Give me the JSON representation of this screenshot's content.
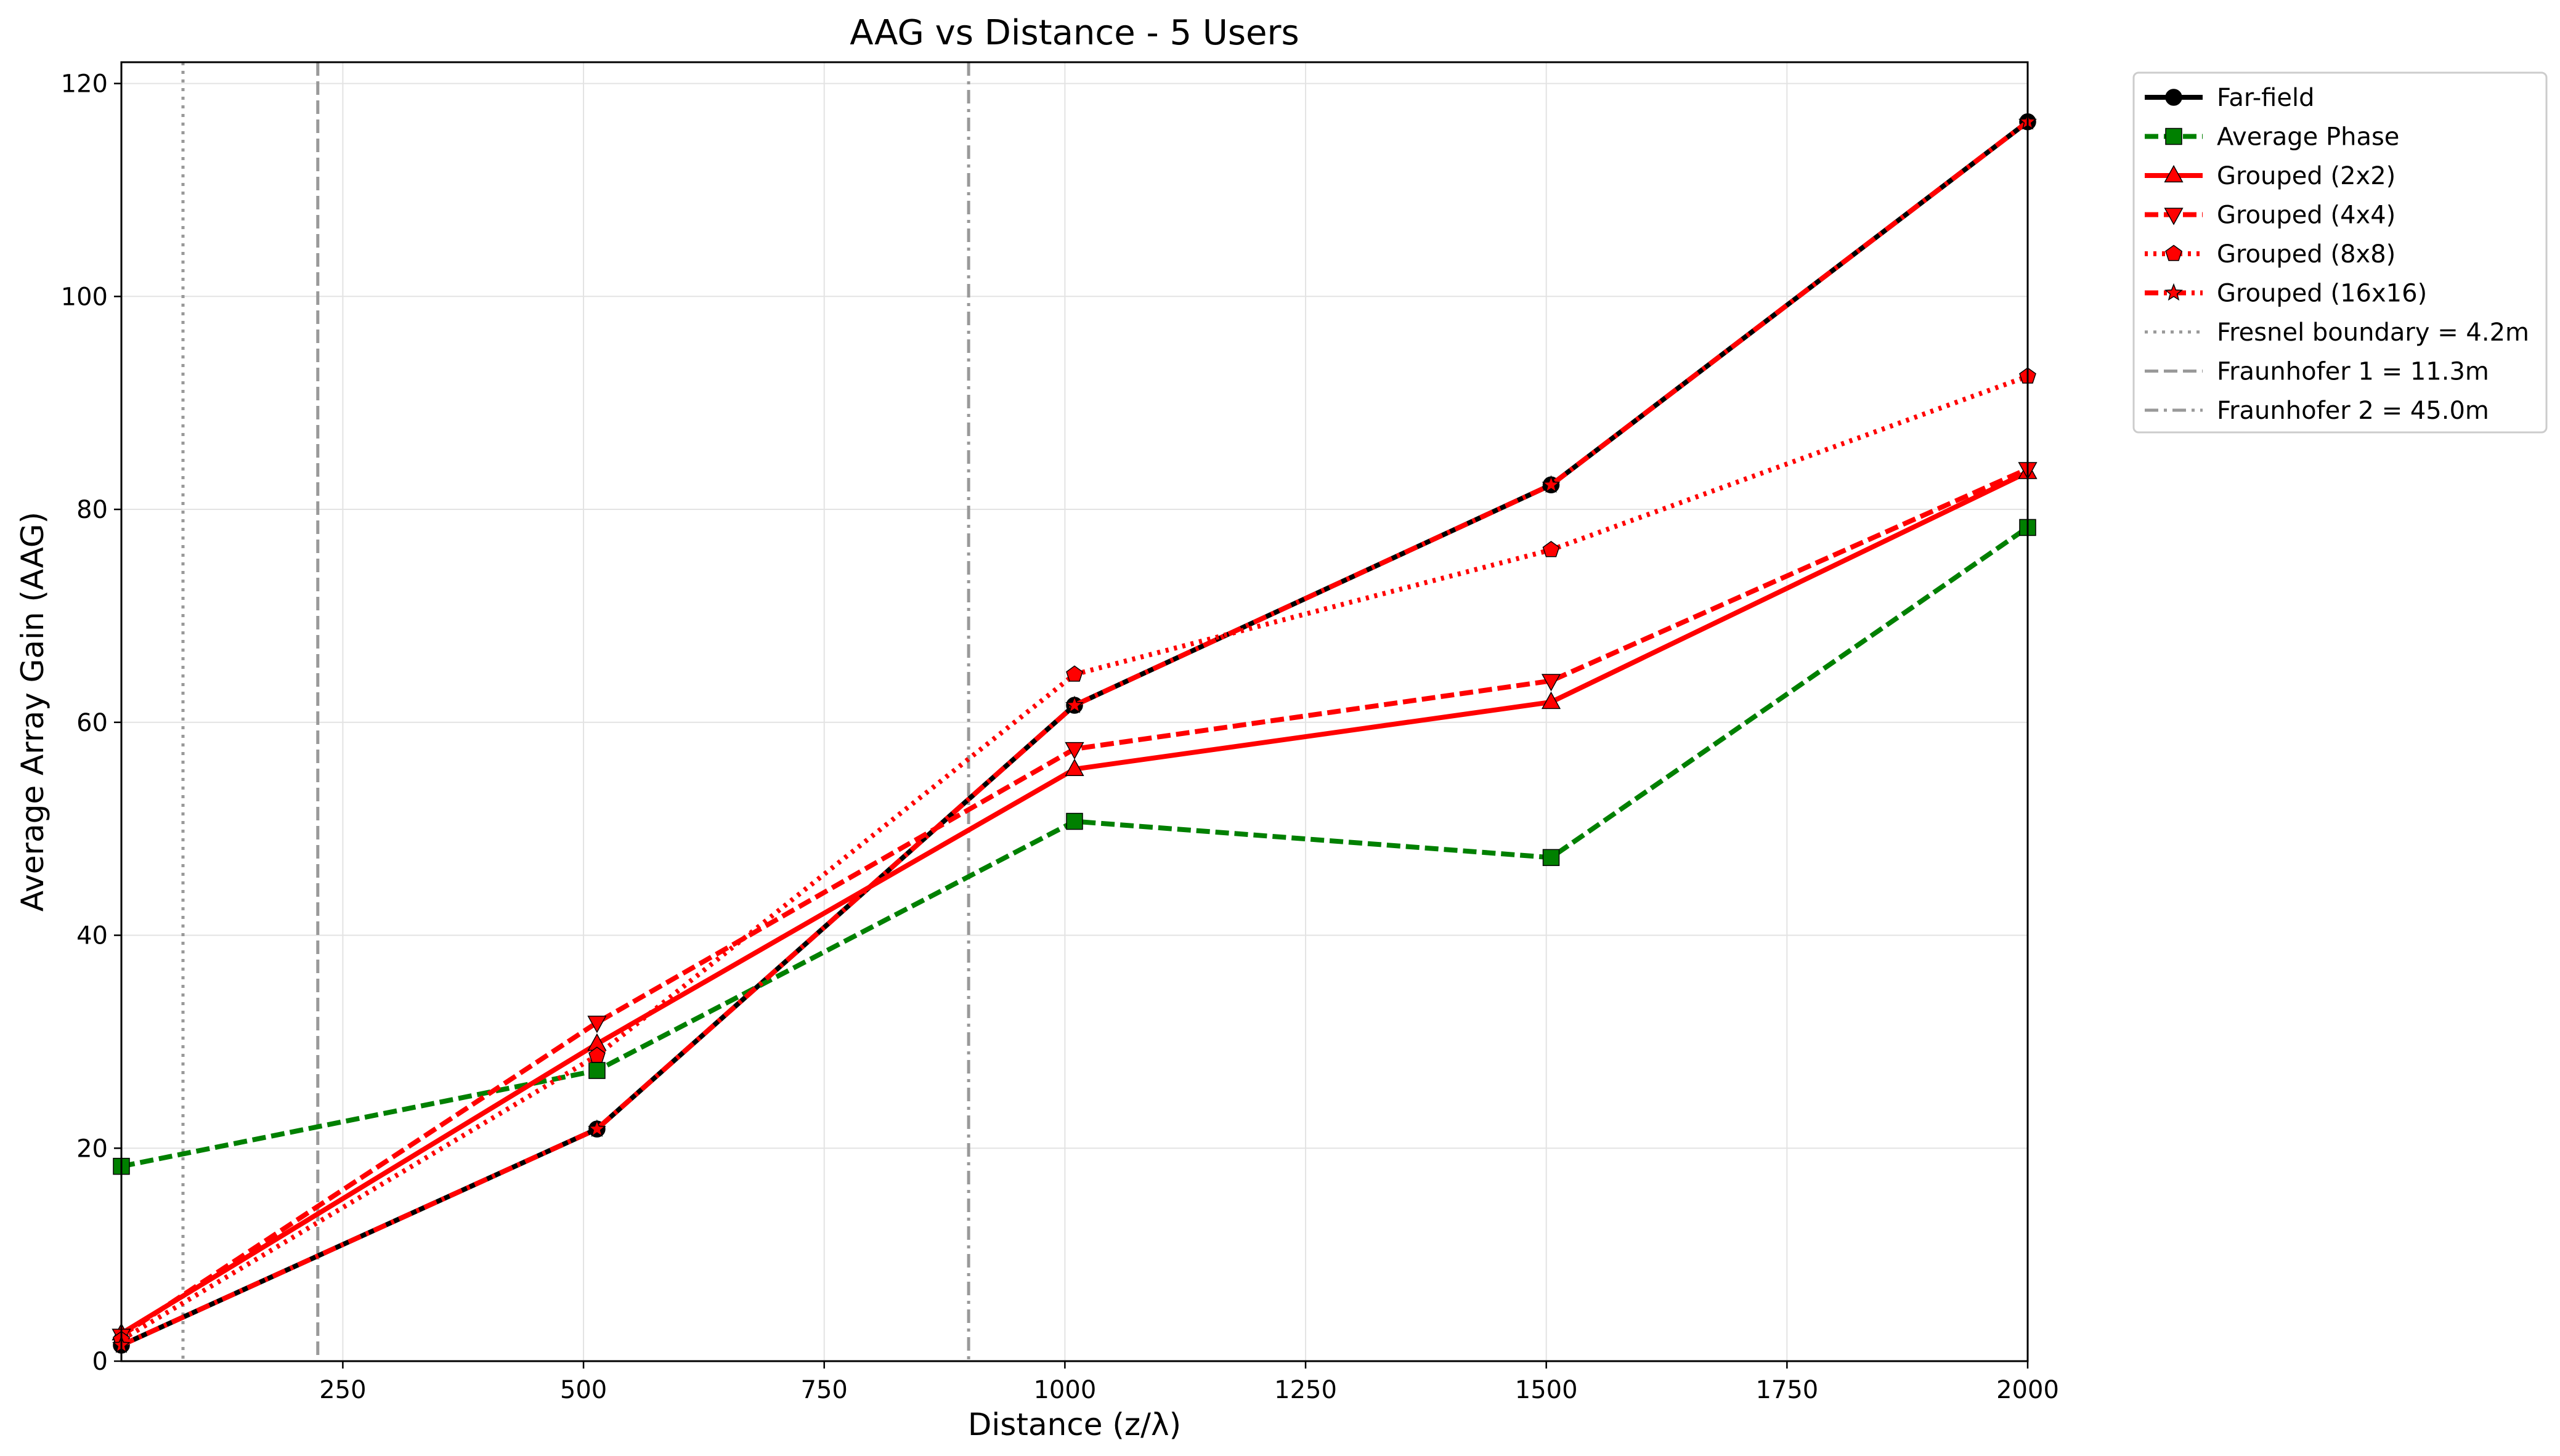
{
  "chart_data": {
    "type": "line",
    "title": "AAG vs Distance - 5 Users",
    "xlabel": "Distance (z/λ)",
    "ylabel": "Average Array Gain (AAG)",
    "xlim": [
      20,
      2000
    ],
    "ylim": [
      0,
      122
    ],
    "xticks": [
      250,
      500,
      750,
      1000,
      1250,
      1500,
      1750,
      2000
    ],
    "yticks": [
      0,
      20,
      40,
      60,
      80,
      100,
      120
    ],
    "grid": true,
    "legend_position": "outside-top-right",
    "series": [
      {
        "name": "Far-field",
        "color": "#000000",
        "style": "solid",
        "marker": "circle",
        "x": [
          20,
          514,
          1010,
          1505,
          2000
        ],
        "y": [
          1.5,
          21.8,
          61.6,
          82.3,
          116.4
        ]
      },
      {
        "name": "Average Phase",
        "color": "#008000",
        "style": "dashed",
        "marker": "square",
        "x": [
          20,
          514,
          1010,
          1505,
          2000
        ],
        "y": [
          18.3,
          27.3,
          50.7,
          47.3,
          78.3
        ]
      },
      {
        "name": "Grouped (2x2)",
        "color": "#ff0000",
        "style": "solid",
        "marker": "triangle-up",
        "x": [
          20,
          514,
          1010,
          1505,
          2000
        ],
        "y": [
          2.6,
          29.8,
          55.6,
          61.9,
          83.5
        ]
      },
      {
        "name": "Grouped (4x4)",
        "color": "#ff0000",
        "style": "dashed",
        "marker": "triangle-down",
        "x": [
          20,
          514,
          1010,
          1505,
          2000
        ],
        "y": [
          2.4,
          31.8,
          57.5,
          63.9,
          83.8
        ]
      },
      {
        "name": "Grouped (8x8)",
        "color": "#ff0000",
        "style": "dotted",
        "marker": "pentagon",
        "x": [
          20,
          514,
          1010,
          1505,
          2000
        ],
        "y": [
          2.0,
          28.7,
          64.5,
          76.2,
          92.5
        ]
      },
      {
        "name": "Grouped (16x16)",
        "color": "#ff0000",
        "style": "dashdot",
        "marker": "star",
        "x": [
          20,
          514,
          1010,
          1505,
          2000
        ],
        "y": [
          1.5,
          21.8,
          61.6,
          82.3,
          116.4
        ]
      }
    ],
    "vlines": [
      {
        "name": "Fresnel boundary = 4.2m",
        "x": 84,
        "color": "#999999",
        "style": "dotted"
      },
      {
        "name": "Fraunhofer 1 = 11.3m",
        "x": 224,
        "color": "#999999",
        "style": "dashed"
      },
      {
        "name": "Fraunhofer 2 = 45.0m",
        "x": 900,
        "color": "#999999",
        "style": "dashdot"
      }
    ]
  }
}
